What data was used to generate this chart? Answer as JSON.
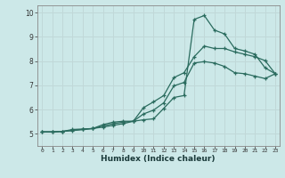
{
  "xlabel": "Humidex (Indice chaleur)",
  "bg_color": "#cce8e8",
  "line_color": "#2a6b5e",
  "grid_color": "#c0d8d8",
  "xlim_min": -0.5,
  "xlim_max": 23.4,
  "ylim_min": 4.5,
  "ylim_max": 10.3,
  "xticks": [
    0,
    1,
    2,
    3,
    4,
    5,
    6,
    7,
    8,
    9,
    10,
    11,
    12,
    13,
    14,
    15,
    16,
    17,
    18,
    19,
    20,
    21,
    22,
    23
  ],
  "yticks": [
    5,
    6,
    7,
    8,
    9,
    10
  ],
  "line1_x": [
    0,
    1,
    2,
    3,
    4,
    5,
    6,
    7,
    8,
    9,
    10,
    11,
    12,
    13,
    14,
    15,
    16,
    17,
    18,
    19,
    20,
    21,
    22,
    23
  ],
  "line1_y": [
    5.08,
    5.08,
    5.1,
    5.15,
    5.18,
    5.22,
    5.28,
    5.35,
    5.42,
    5.52,
    5.58,
    5.62,
    6.05,
    6.5,
    6.58,
    9.72,
    9.88,
    9.28,
    9.12,
    8.52,
    8.42,
    8.28,
    7.72,
    7.48
  ],
  "line2_x": [
    0,
    1,
    2,
    3,
    4,
    5,
    6,
    7,
    8,
    9,
    10,
    11,
    12,
    13,
    14,
    15,
    16,
    17,
    18,
    19,
    20,
    21,
    22,
    23
  ],
  "line2_y": [
    5.08,
    5.08,
    5.1,
    5.18,
    5.2,
    5.22,
    5.38,
    5.48,
    5.52,
    5.52,
    6.08,
    6.32,
    6.58,
    7.32,
    7.52,
    8.18,
    8.62,
    8.52,
    8.52,
    8.38,
    8.28,
    8.18,
    8.02,
    7.48
  ],
  "line3_x": [
    0,
    1,
    2,
    3,
    4,
    5,
    6,
    7,
    8,
    9,
    10,
    11,
    12,
    13,
    14,
    15,
    16,
    17,
    18,
    19,
    20,
    21,
    22,
    23
  ],
  "line3_y": [
    5.08,
    5.08,
    5.1,
    5.13,
    5.18,
    5.22,
    5.32,
    5.42,
    5.48,
    5.52,
    5.82,
    5.98,
    6.28,
    6.98,
    7.12,
    7.92,
    7.98,
    7.92,
    7.78,
    7.52,
    7.48,
    7.38,
    7.28,
    7.48
  ]
}
